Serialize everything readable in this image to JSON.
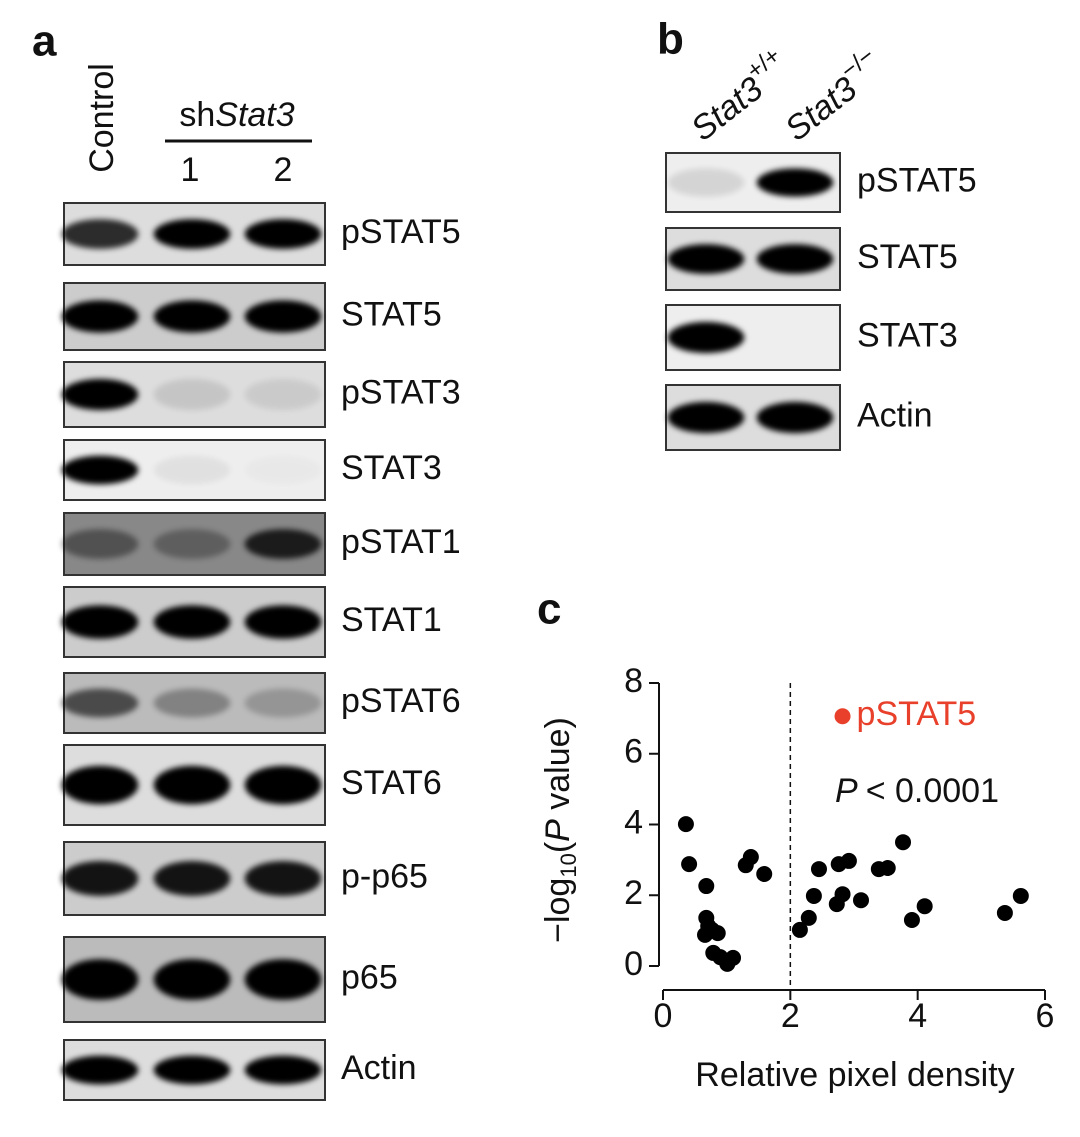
{
  "panel_a": {
    "letter": "a",
    "control": "Control",
    "group_prefix": "sh",
    "group_gene": "Stat3",
    "lanes": [
      "1",
      "2"
    ],
    "bands": [
      "pSTAT5",
      "STAT5",
      "pSTAT3",
      "STAT3",
      "pSTAT1",
      "STAT1",
      "pSTAT6",
      "STAT6",
      "p-p65",
      "p65",
      "Actin"
    ]
  },
  "panel_b": {
    "letter": "b",
    "gene": "Stat3",
    "genotypes": [
      "+/+",
      "−/−"
    ],
    "bands": [
      "pSTAT5",
      "STAT5",
      "STAT3",
      "Actin"
    ]
  },
  "chart_data": {
    "type": "scatter",
    "letter": "c",
    "ylabel": {
      "pre": "−log",
      "sub": "10",
      "open": "(",
      "italic": "P",
      "post": " value)"
    },
    "xlabel": "Relative pixel density",
    "annotation": {
      "italic": "P",
      "text": "< 0.0001"
    },
    "xlim": [
      0,
      6
    ],
    "xticks": [
      0,
      2,
      4,
      6
    ],
    "ylim": [
      0,
      8
    ],
    "yticks": [
      0,
      2,
      4,
      6,
      8
    ],
    "vline": 2,
    "series": [
      {
        "color": "#000000",
        "x": [
          0.36,
          0.41,
          0.68,
          0.68,
          0.71,
          0.66,
          0.77,
          0.86,
          0.79,
          0.9,
          1.01,
          1.1,
          1.3,
          1.38,
          1.59,
          2.15,
          2.29,
          2.37,
          2.45,
          2.73,
          2.82,
          2.76,
          2.92,
          3.11,
          3.39,
          3.53,
          3.77,
          3.91,
          4.11,
          5.37,
          5.62
        ],
        "values": [
          4.01,
          2.88,
          2.26,
          1.36,
          1.13,
          0.88,
          1.02,
          0.93,
          0.37,
          0.25,
          0.06,
          0.23,
          2.85,
          3.08,
          2.6,
          1.02,
          1.36,
          1.98,
          2.74,
          1.75,
          2.03,
          2.88,
          2.97,
          1.86,
          2.74,
          2.77,
          3.5,
          1.3,
          1.69,
          1.5,
          1.98
        ]
      },
      {
        "name": "pSTAT5",
        "color": "#e8402a",
        "x": [
          2.82
        ],
        "values": [
          7.06
        ]
      }
    ]
  }
}
